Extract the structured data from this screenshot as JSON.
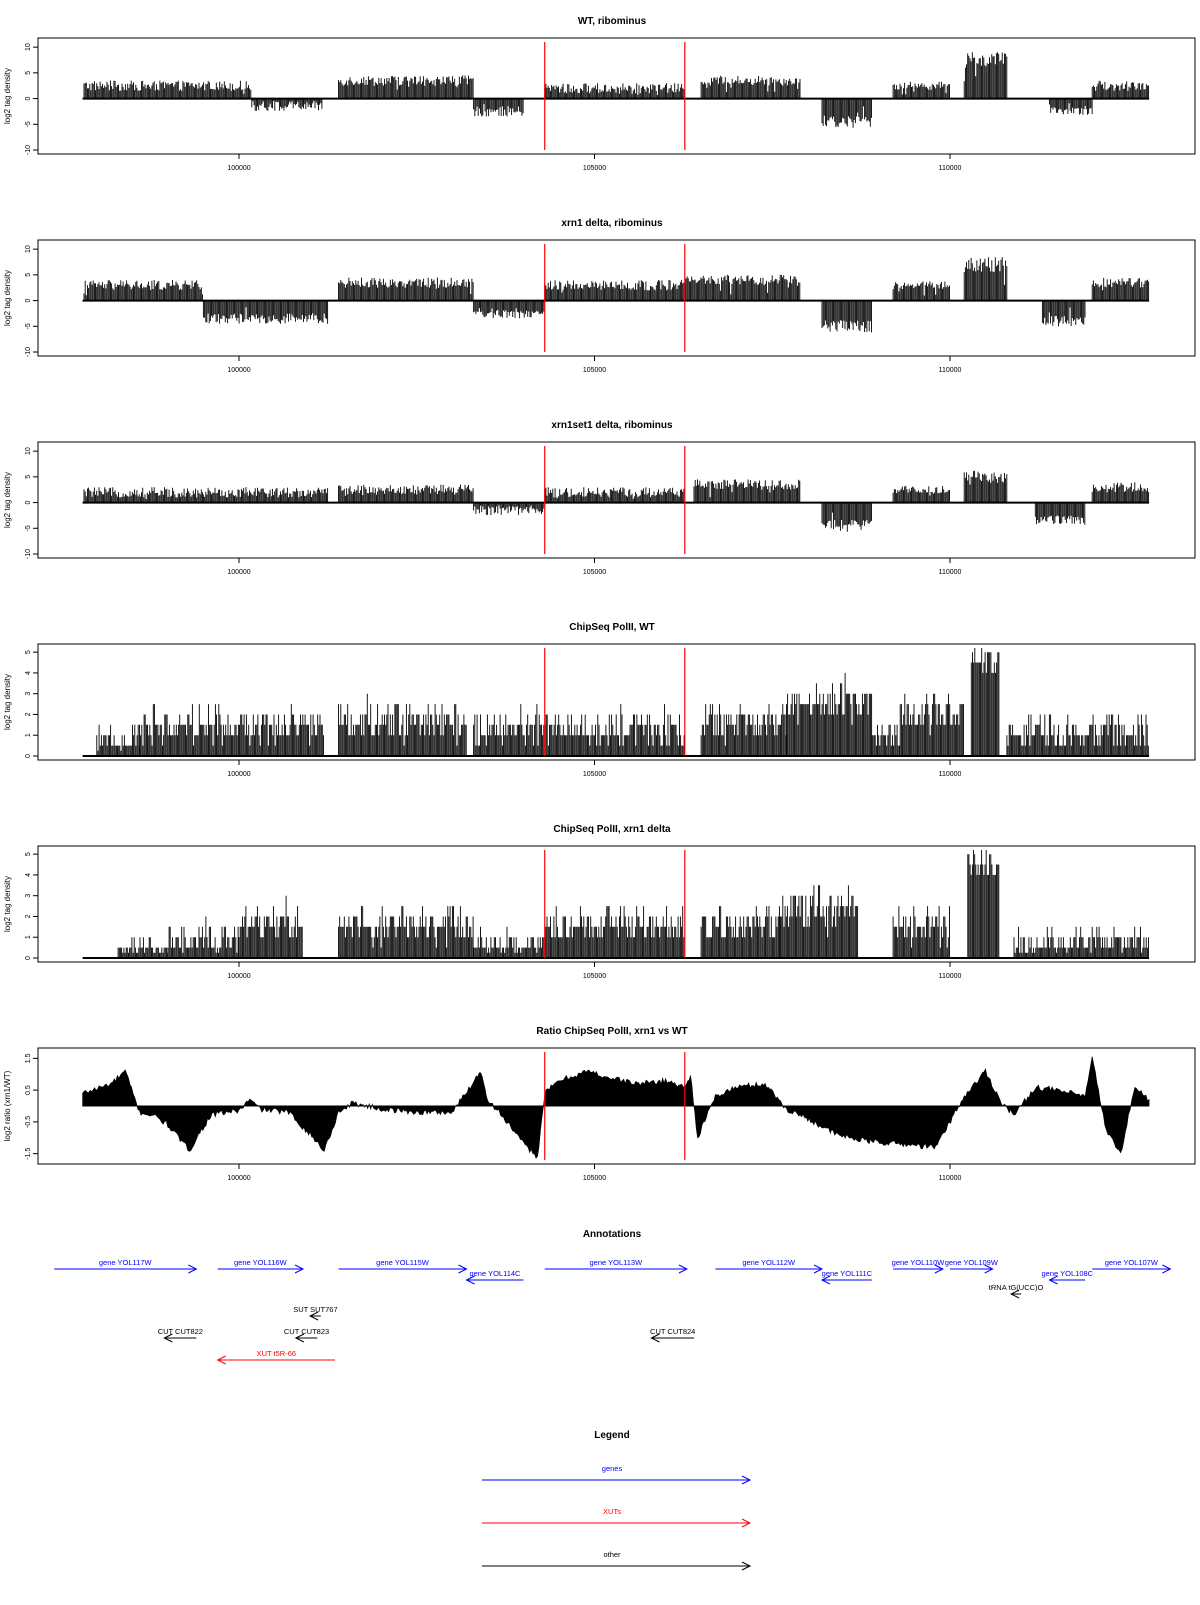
{
  "figure": {
    "x_ticks": [
      100000,
      105000,
      110000
    ],
    "x_range": [
      97800,
      112800
    ],
    "red_lines": [
      104300,
      106270
    ]
  },
  "chart_data": [
    {
      "type": "bar",
      "title": "WT, ribominus",
      "ylabel": "log2 tag density",
      "ylim": [
        -10,
        11
      ],
      "yticks": [
        -10,
        -5,
        0,
        5,
        10
      ],
      "segments": [
        {
          "start": 97820,
          "end": 100180,
          "level": 2.5,
          "spread": 1.0
        },
        {
          "start": 100180,
          "end": 101180,
          "level": -1.5,
          "spread": 1.0
        },
        {
          "start": 101400,
          "end": 103300,
          "level": 3.5,
          "spread": 1.0
        },
        {
          "start": 103300,
          "end": 104000,
          "level": -2.5,
          "spread": 1.0
        },
        {
          "start": 104300,
          "end": 106270,
          "level": 2.0,
          "spread": 1.0
        },
        {
          "start": 106500,
          "end": 107900,
          "level": 3.5,
          "spread": 1.0
        },
        {
          "start": 108200,
          "end": 108900,
          "level": -4.5,
          "spread": 1.2
        },
        {
          "start": 109200,
          "end": 110000,
          "level": 2.5,
          "spread": 0.8
        },
        {
          "start": 110200,
          "end": 110800,
          "level": 7.5,
          "spread": 1.5
        },
        {
          "start": 111400,
          "end": 112000,
          "level": -2.5,
          "spread": 0.8
        },
        {
          "start": 112000,
          "end": 112800,
          "level": 2.5,
          "spread": 1.0
        }
      ]
    },
    {
      "type": "bar",
      "title": "xrn1 delta, ribominus",
      "ylabel": "log2 tag density",
      "ylim": [
        -10,
        11
      ],
      "yticks": [
        -10,
        -5,
        0,
        5,
        10
      ],
      "segments": [
        {
          "start": 97820,
          "end": 99500,
          "level": 3.0,
          "spread": 1.0
        },
        {
          "start": 99500,
          "end": 101250,
          "level": -3.5,
          "spread": 1.0
        },
        {
          "start": 101400,
          "end": 103300,
          "level": 3.5,
          "spread": 1.0
        },
        {
          "start": 103300,
          "end": 104300,
          "level": -2.5,
          "spread": 1.0
        },
        {
          "start": 104300,
          "end": 106270,
          "level": 3.0,
          "spread": 1.0
        },
        {
          "start": 106270,
          "end": 107900,
          "level": 4.0,
          "spread": 1.0
        },
        {
          "start": 108200,
          "end": 108900,
          "level": -5.0,
          "spread": 1.2
        },
        {
          "start": 109200,
          "end": 110000,
          "level": 3.0,
          "spread": 0.8
        },
        {
          "start": 110200,
          "end": 110800,
          "level": 7.0,
          "spread": 1.5
        },
        {
          "start": 111300,
          "end": 111900,
          "level": -4.0,
          "spread": 1.0
        },
        {
          "start": 112000,
          "end": 112800,
          "level": 3.5,
          "spread": 1.0
        }
      ]
    },
    {
      "type": "bar",
      "title": "xrn1set1 delta, ribominus",
      "ylabel": "log2 tag density",
      "ylim": [
        -10,
        11
      ],
      "yticks": [
        -10,
        -5,
        0,
        5,
        10
      ],
      "segments": [
        {
          "start": 97820,
          "end": 99500,
          "level": 2.0,
          "spread": 1.0
        },
        {
          "start": 99500,
          "end": 101250,
          "level": 2.0,
          "spread": 1.0
        },
        {
          "start": 101400,
          "end": 103300,
          "level": 2.5,
          "spread": 1.0
        },
        {
          "start": 103300,
          "end": 104300,
          "level": -1.5,
          "spread": 1.0
        },
        {
          "start": 104300,
          "end": 106270,
          "level": 2.0,
          "spread": 1.0
        },
        {
          "start": 106400,
          "end": 107900,
          "level": 3.5,
          "spread": 1.0
        },
        {
          "start": 108200,
          "end": 108900,
          "level": -4.5,
          "spread": 1.2
        },
        {
          "start": 109200,
          "end": 110000,
          "level": 2.5,
          "spread": 0.8
        },
        {
          "start": 110200,
          "end": 110800,
          "level": 5.0,
          "spread": 1.2
        },
        {
          "start": 111200,
          "end": 111900,
          "level": -3.5,
          "spread": 1.0
        },
        {
          "start": 112000,
          "end": 112800,
          "level": 3.0,
          "spread": 1.0
        }
      ]
    },
    {
      "type": "bar",
      "title": "ChipSeq PolII, WT",
      "ylabel": "log2 tag density",
      "ylim": [
        0,
        5.2
      ],
      "yticks": [
        0,
        1,
        2,
        3,
        4,
        5
      ],
      "segments": [
        {
          "start": 98000,
          "end": 98600,
          "level": 0.6,
          "spread": 0.6
        },
        {
          "start": 98600,
          "end": 101200,
          "level": 1.4,
          "spread": 0.8
        },
        {
          "start": 101400,
          "end": 103200,
          "level": 1.6,
          "spread": 0.8
        },
        {
          "start": 103300,
          "end": 106270,
          "level": 1.2,
          "spread": 0.7
        },
        {
          "start": 106500,
          "end": 107700,
          "level": 1.5,
          "spread": 0.8
        },
        {
          "start": 107700,
          "end": 108900,
          "level": 2.5,
          "spread": 0.8
        },
        {
          "start": 108900,
          "end": 109300,
          "level": 0.8,
          "spread": 0.5
        },
        {
          "start": 109300,
          "end": 110200,
          "level": 2.0,
          "spread": 0.8
        },
        {
          "start": 110300,
          "end": 110700,
          "level": 4.6,
          "spread": 0.5
        },
        {
          "start": 110800,
          "end": 112800,
          "level": 1.0,
          "spread": 0.7
        }
      ]
    },
    {
      "type": "bar",
      "title": "ChipSeq PolII, xrn1 delta",
      "ylabel": "log2 tag density",
      "ylim": [
        0,
        5.2
      ],
      "yticks": [
        0,
        1,
        2,
        3,
        4,
        5
      ],
      "segments": [
        {
          "start": 98300,
          "end": 99000,
          "level": 0.3,
          "spread": 0.4
        },
        {
          "start": 99000,
          "end": 100000,
          "level": 0.8,
          "spread": 0.6
        },
        {
          "start": 100000,
          "end": 100900,
          "level": 1.6,
          "spread": 0.7
        },
        {
          "start": 101400,
          "end": 103300,
          "level": 1.4,
          "spread": 0.7
        },
        {
          "start": 103300,
          "end": 104300,
          "level": 0.5,
          "spread": 0.5
        },
        {
          "start": 104300,
          "end": 106270,
          "level": 1.5,
          "spread": 0.7
        },
        {
          "start": 106500,
          "end": 107600,
          "level": 1.4,
          "spread": 0.7
        },
        {
          "start": 107600,
          "end": 108700,
          "level": 2.3,
          "spread": 0.8
        },
        {
          "start": 109200,
          "end": 110000,
          "level": 1.4,
          "spread": 0.7
        },
        {
          "start": 110250,
          "end": 110700,
          "level": 4.4,
          "spread": 0.5
        },
        {
          "start": 110900,
          "end": 112800,
          "level": 0.6,
          "spread": 0.5
        }
      ]
    },
    {
      "type": "area",
      "title": "Ratio ChipSeq PolII, xrn1 vs WT",
      "ylabel": "log2 ratio (xrn1/WT)",
      "ylim": [
        -1.7,
        1.7
      ],
      "yticks": [
        -1.5,
        -0.5,
        0.5,
        1.5
      ],
      "tick_labels": [
        "-1.5",
        "-0.5",
        "0.5",
        "1.5"
      ],
      "x": [
        97800,
        98200,
        98400,
        98600,
        98800,
        99000,
        99300,
        99600,
        99800,
        100000,
        100150,
        100300,
        100700,
        101000,
        101200,
        101400,
        101600,
        102000,
        102500,
        103000,
        103400,
        103500,
        103700,
        104000,
        104200,
        104300,
        104500,
        104900,
        105200,
        105600,
        106000,
        106270,
        106350,
        106450,
        106700,
        107000,
        107400,
        107700,
        108000,
        108400,
        108800,
        109300,
        109800,
        110200,
        110500,
        110700,
        110900,
        111200,
        111500,
        111900,
        112000,
        112200,
        112400,
        112600,
        112800
      ],
      "values": [
        0.4,
        0.7,
        1.1,
        -0.2,
        -0.3,
        -0.6,
        -1.4,
        -0.3,
        -0.2,
        -0.15,
        0.2,
        -0.1,
        -0.2,
        -0.9,
        -1.4,
        -0.2,
        0.1,
        -0.1,
        -0.2,
        -0.2,
        1.1,
        0.2,
        -0.3,
        -1.2,
        -1.6,
        0.4,
        0.8,
        1.1,
        0.9,
        0.7,
        0.8,
        0.6,
        1.0,
        -1.0,
        0.3,
        0.6,
        0.7,
        -0.1,
        -0.4,
        -0.9,
        -1.1,
        -1.2,
        -1.3,
        0.3,
        1.1,
        0.2,
        -0.3,
        0.6,
        0.5,
        0.3,
        1.5,
        -0.8,
        -1.5,
        0.6,
        0.2
      ]
    }
  ],
  "annotations": {
    "title": "Annotations",
    "features": [
      {
        "label": "gene YOL117W",
        "type": "gene",
        "start": 97400,
        "end": 99400,
        "strand": "+",
        "row": 0
      },
      {
        "label": "gene YOL116W",
        "type": "gene",
        "start": 99700,
        "end": 100900,
        "strand": "+",
        "row": 0
      },
      {
        "label": "gene YOL115W",
        "type": "gene",
        "start": 101400,
        "end": 103200,
        "strand": "+",
        "row": 0
      },
      {
        "label": "gene YOL114C",
        "type": "gene",
        "start": 103200,
        "end": 104000,
        "strand": "-",
        "row": 1
      },
      {
        "label": "gene YOL113W",
        "type": "gene",
        "start": 104300,
        "end": 106300,
        "strand": "+",
        "row": 0
      },
      {
        "label": "gene YOL112W",
        "type": "gene",
        "start": 106700,
        "end": 108200,
        "strand": "+",
        "row": 0
      },
      {
        "label": "gene YOL111C",
        "type": "gene",
        "start": 108200,
        "end": 108900,
        "strand": "-",
        "row": 1
      },
      {
        "label": "gene YOL110W",
        "type": "gene",
        "start": 109200,
        "end": 109900,
        "strand": "+",
        "row": 0
      },
      {
        "label": "gene YOL109W",
        "type": "gene",
        "start": 110000,
        "end": 110600,
        "strand": "+",
        "row": 0
      },
      {
        "label": "gene YOL108C",
        "type": "gene",
        "start": 111400,
        "end": 111900,
        "strand": "-",
        "row": 1
      },
      {
        "label": "gene YOL107W",
        "type": "gene",
        "start": 112000,
        "end": 113100,
        "strand": "+",
        "row": 0
      },
      {
        "label": "tRNA tG(UCC)O",
        "type": "other",
        "start": 110900,
        "end": 111000,
        "strand": "-",
        "row": 2
      },
      {
        "label": "SUT SUT767",
        "type": "other",
        "start": 101000,
        "end": 101150,
        "strand": "-",
        "row": 3
      },
      {
        "label": "CUT CUT822",
        "type": "other",
        "start": 98950,
        "end": 99400,
        "strand": "-",
        "row": 4
      },
      {
        "label": "CUT CUT823",
        "type": "other",
        "start": 100800,
        "end": 101100,
        "strand": "-",
        "row": 4
      },
      {
        "label": "CUT CUT824",
        "type": "other",
        "start": 105800,
        "end": 106400,
        "strand": "-",
        "row": 4
      },
      {
        "label": "XUT t5R-66",
        "type": "xut",
        "start": 99700,
        "end": 101350,
        "strand": "-",
        "row": 5
      }
    ]
  },
  "legend": {
    "title": "Legend",
    "items": [
      {
        "label": "genes",
        "color": "#0000ff"
      },
      {
        "label": "XUTs",
        "color": "#ff0000"
      },
      {
        "label": "other",
        "color": "#000000"
      }
    ]
  },
  "colors": {
    "gene": "#0000ff",
    "xut": "#ff0000",
    "other": "#000000",
    "marker": "#ff0000",
    "bars": "#000000"
  }
}
